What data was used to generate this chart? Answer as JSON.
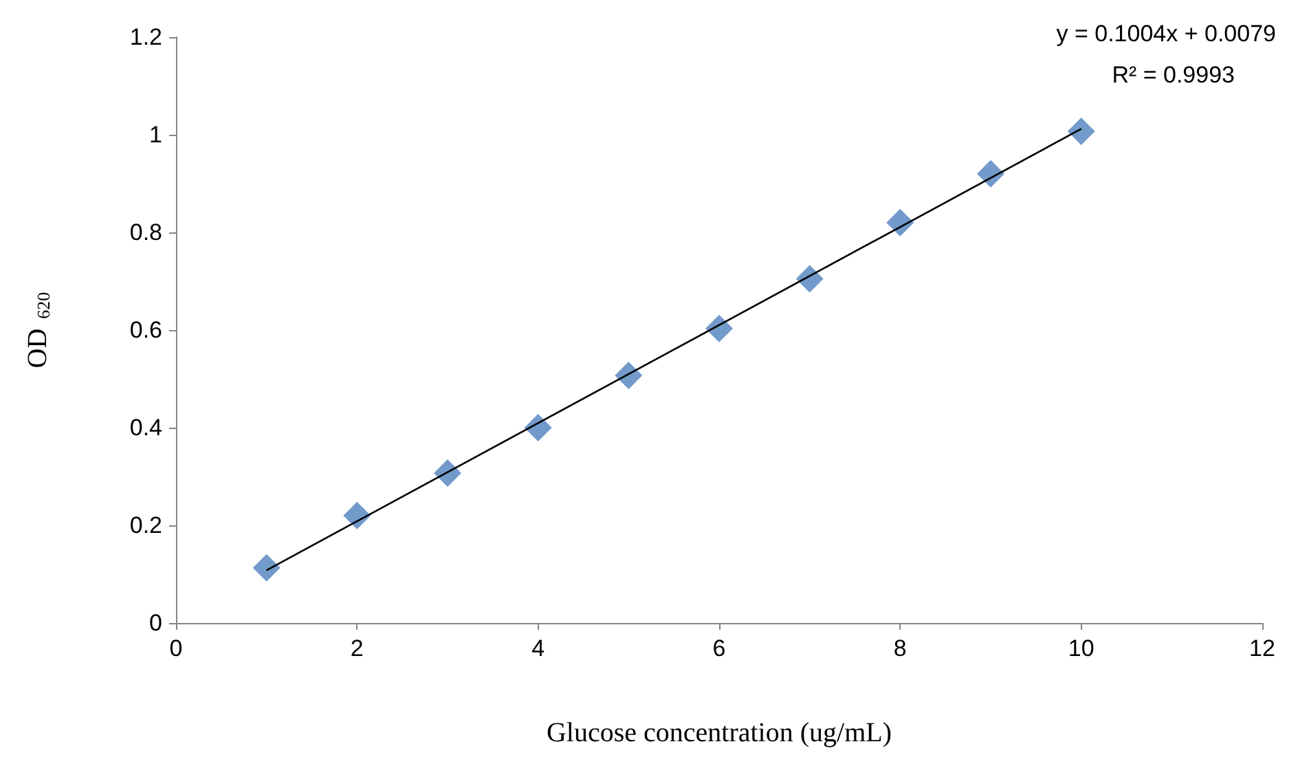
{
  "chart_data": {
    "type": "scatter",
    "xlabel": "Glucose concentration (ug/mL)",
    "ylabel": "OD $_{620}$",
    "annotations": [
      "y = 0.1004x + 0.0079",
      "R² = 0.9993"
    ],
    "x": [
      1,
      2,
      3,
      4,
      5,
      6,
      7,
      8,
      9,
      10
    ],
    "series": [
      {
        "color": "#4f81bd",
        "marker": "diamond",
        "values": [
          0.113,
          0.22,
          0.307,
          0.4,
          0.507,
          0.603,
          0.705,
          0.82,
          0.92,
          1.007
        ]
      },
      {
        "type": "line",
        "color": "#000000",
        "marker": "none",
        "line_style": "solid",
        "x": [
          1,
          10
        ],
        "values": [
          0.108,
          1.012
        ]
      }
    ],
    "xlim": [
      0,
      12
    ],
    "xticks": [
      0,
      2,
      4,
      6,
      8,
      10,
      12
    ],
    "ylim": [
      0,
      1.2
    ],
    "yticks": [
      0,
      0.2,
      0.4,
      0.6,
      0.8,
      1,
      1.2
    ],
    "grid": false
  }
}
